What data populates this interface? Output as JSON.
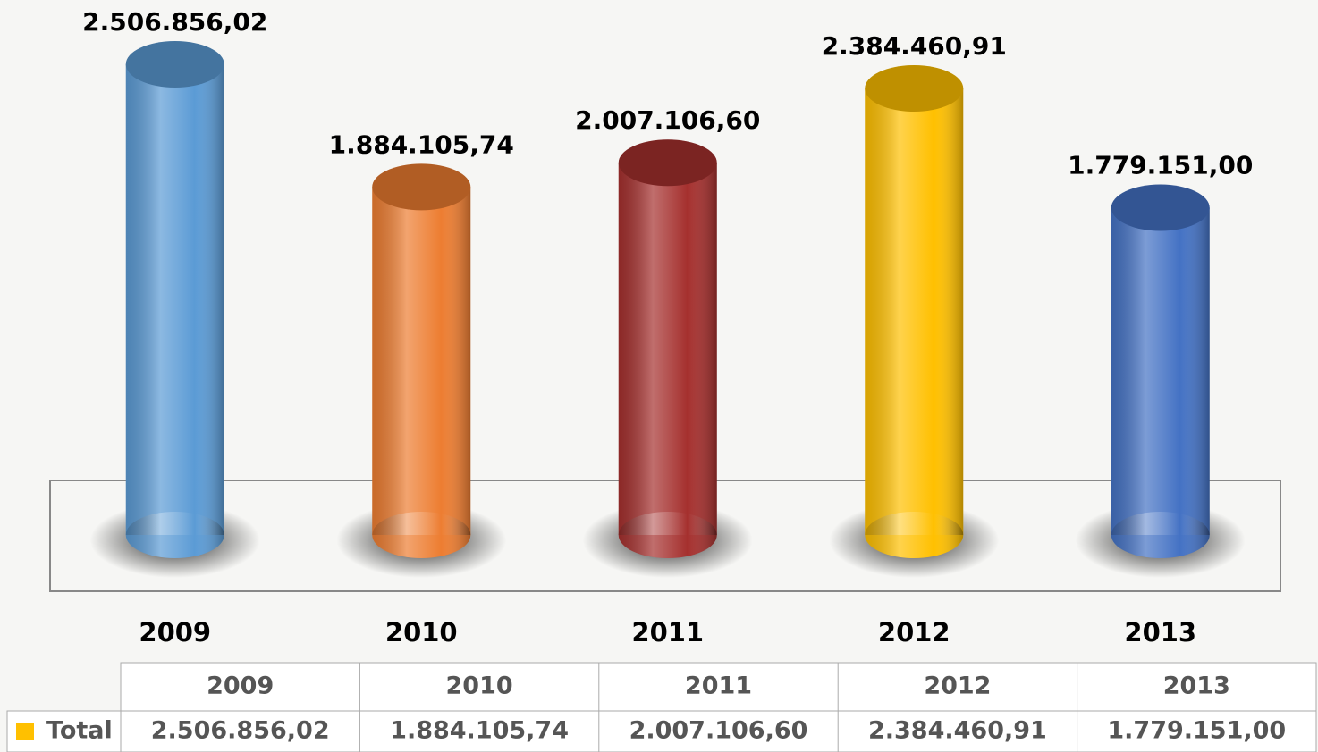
{
  "chart_data": {
    "type": "bar",
    "categories": [
      "2009",
      "2010",
      "2011",
      "2012",
      "2013"
    ],
    "series": [
      {
        "name": "Total",
        "color": "#ffc000",
        "colors": [
          "#5b9bd5",
          "#ed7d31",
          "#a5302e",
          "#ffc000",
          "#4472c4"
        ],
        "values": [
          2506856.02,
          1884105.74,
          2007106.6,
          2384460.91,
          1779151.0
        ],
        "value_labels": [
          "2.506.856,02",
          "1.884.105,74",
          "2.007.106,60",
          "2.384.460,91",
          "1.779.151,00"
        ]
      }
    ]
  }
}
